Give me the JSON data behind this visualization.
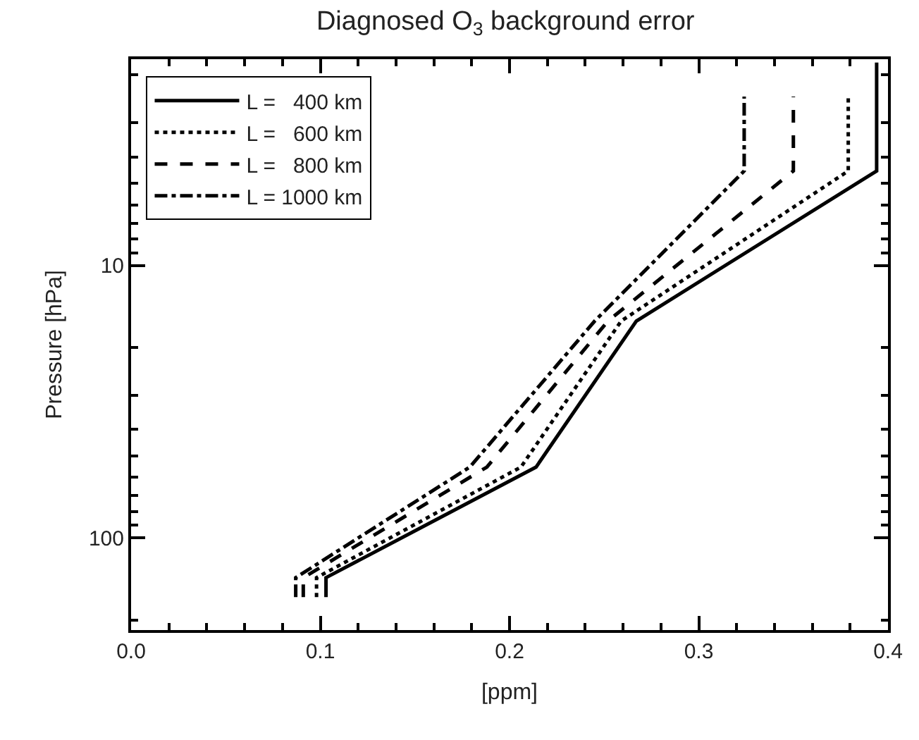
{
  "chart_data": {
    "type": "line",
    "title": "Diagnosed O$_{3}$ background error",
    "xlabel": "[ppm]",
    "ylabel": "Pressure [hPa]",
    "series": [
      {
        "name": "L =   400 km",
        "color": "#000000",
        "line_style": "solid",
        "x": [
          0.103,
          0.103,
          0.214,
          0.267,
          0.394,
          0.394
        ],
        "values": [
          165,
          140,
          55,
          16,
          4.5,
          1.8
        ]
      },
      {
        "name": "L =   600 km",
        "color": "#000000",
        "line_style": "dotted",
        "x": [
          0.098,
          0.098,
          0.206,
          0.259,
          0.379,
          0.379
        ],
        "values": [
          165,
          140,
          55,
          16,
          4.5,
          2.4
        ]
      },
      {
        "name": "L =   800 km",
        "color": "#000000",
        "line_style": "dashed",
        "x": [
          0.091,
          0.091,
          0.188,
          0.252,
          0.35,
          0.35
        ],
        "values": [
          165,
          140,
          55,
          16,
          4.5,
          2.4
        ]
      },
      {
        "name": "L = 1000 km",
        "color": "#000000",
        "line_style": "dashdot",
        "x": [
          0.087,
          0.087,
          0.179,
          0.245,
          0.324,
          0.324
        ],
        "values": [
          165,
          140,
          55,
          16,
          4.5,
          2.4
        ]
      }
    ],
    "log": "y",
    "legend": "top left",
    "marker": "none",
    "xlim": [
      0.0,
      0.4
    ],
    "xticks": [
      {
        "value": 0.0,
        "label": "0.0"
      },
      {
        "value": 0.02,
        "label": null
      },
      {
        "value": 0.04,
        "label": null
      },
      {
        "value": 0.06,
        "label": null
      },
      {
        "value": 0.08,
        "label": null
      },
      {
        "value": 0.1,
        "label": "0.1"
      },
      {
        "value": 0.12,
        "label": null
      },
      {
        "value": 0.14,
        "label": null
      },
      {
        "value": 0.16,
        "label": null
      },
      {
        "value": 0.18,
        "label": null
      },
      {
        "value": 0.2,
        "label": "0.2"
      },
      {
        "value": 0.22,
        "label": null
      },
      {
        "value": 0.24,
        "label": null
      },
      {
        "value": 0.26,
        "label": null
      },
      {
        "value": 0.28,
        "label": null
      },
      {
        "value": 0.3,
        "label": "0.3"
      },
      {
        "value": 0.32,
        "label": null
      },
      {
        "value": 0.34,
        "label": null
      },
      {
        "value": 0.36,
        "label": null
      },
      {
        "value": 0.38,
        "label": null
      },
      {
        "value": 0.4,
        "label": "0.4"
      }
    ],
    "ylim": [
      218,
      1.75
    ],
    "yticks": [
      {
        "value": 2,
        "label": null
      },
      {
        "value": 3,
        "label": null
      },
      {
        "value": 4,
        "label": null
      },
      {
        "value": 5,
        "label": null
      },
      {
        "value": 6,
        "label": null
      },
      {
        "value": 7,
        "label": null
      },
      {
        "value": 8,
        "label": null
      },
      {
        "value": 9,
        "label": null
      },
      10,
      {
        "value": 20,
        "label": null
      },
      {
        "value": 30,
        "label": null
      },
      {
        "value": 40,
        "label": null
      },
      {
        "value": 50,
        "label": null
      },
      {
        "value": 60,
        "label": null
      },
      {
        "value": 70,
        "label": null
      },
      {
        "value": 80,
        "label": null
      },
      {
        "value": 90,
        "label": null
      },
      100,
      {
        "value": 200,
        "label": null
      }
    ]
  }
}
